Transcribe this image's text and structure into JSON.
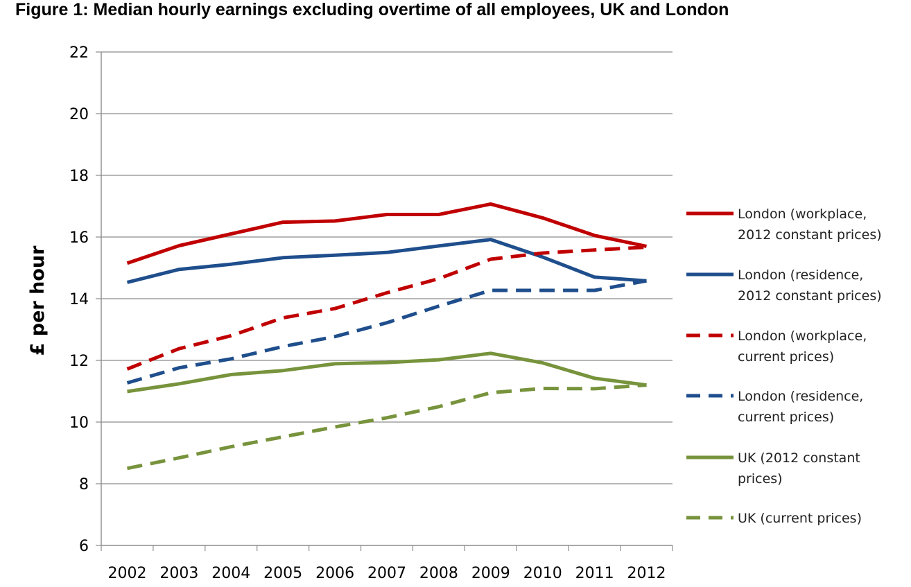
{
  "chart_data": {
    "type": "line",
    "title": "Figure 1: Median hourly earnings excluding overtime of all employees, UK and London",
    "xlabel": "",
    "ylabel": "£ per hour",
    "ylim": [
      6,
      22
    ],
    "yticks": [
      6,
      8,
      10,
      12,
      14,
      16,
      18,
      20,
      22
    ],
    "categories": [
      "2002",
      "2003",
      "2004",
      "2005",
      "2006",
      "2007",
      "2008",
      "2009",
      "2010",
      "2011",
      "2012"
    ],
    "grid": true,
    "legend_position": "right",
    "series": [
      {
        "name": "London (workplace, 2012 constant prices)",
        "legend_lines": [
          "London (workplace,",
          "2012 constant prices)"
        ],
        "color": "#C00000",
        "dash": "solid",
        "values": [
          15.15,
          15.72,
          16.1,
          16.48,
          16.52,
          16.73,
          16.73,
          17.07,
          16.62,
          16.05,
          15.7
        ]
      },
      {
        "name": "London (residence, 2012 constant prices)",
        "legend_lines": [
          "London (residence,",
          "2012 constant prices)"
        ],
        "color": "#1F4E8C",
        "dash": "solid",
        "values": [
          14.53,
          14.95,
          15.12,
          15.33,
          15.41,
          15.5,
          15.71,
          15.92,
          15.35,
          14.7,
          14.58
        ]
      },
      {
        "name": "London (workplace, current prices)",
        "legend_lines": [
          "London (workplace,",
          "current prices)"
        ],
        "color": "#C00000",
        "dash": "dashed",
        "values": [
          11.72,
          12.38,
          12.8,
          13.38,
          13.68,
          14.19,
          14.65,
          15.28,
          15.48,
          15.58,
          15.67
        ]
      },
      {
        "name": "London (residence, current prices)",
        "legend_lines": [
          "London (residence,",
          "current prices)"
        ],
        "color": "#1F4E8C",
        "dash": "dashed",
        "values": [
          11.27,
          11.76,
          12.05,
          12.45,
          12.77,
          13.22,
          13.76,
          14.27,
          14.27,
          14.27,
          14.58
        ]
      },
      {
        "name": "UK (2012 constant prices)",
        "legend_lines": [
          "UK (2012 constant",
          "prices)"
        ],
        "color": "#77933C",
        "dash": "solid",
        "values": [
          10.99,
          11.24,
          11.54,
          11.67,
          11.89,
          11.93,
          12.02,
          12.23,
          11.92,
          11.42,
          11.2
        ]
      },
      {
        "name": "UK (current prices)",
        "legend_lines": [
          "UK (current prices)"
        ],
        "color": "#77933C",
        "dash": "dashed",
        "values": [
          8.5,
          8.84,
          9.2,
          9.52,
          9.84,
          10.14,
          10.5,
          10.95,
          11.09,
          11.08,
          11.2
        ]
      }
    ]
  }
}
